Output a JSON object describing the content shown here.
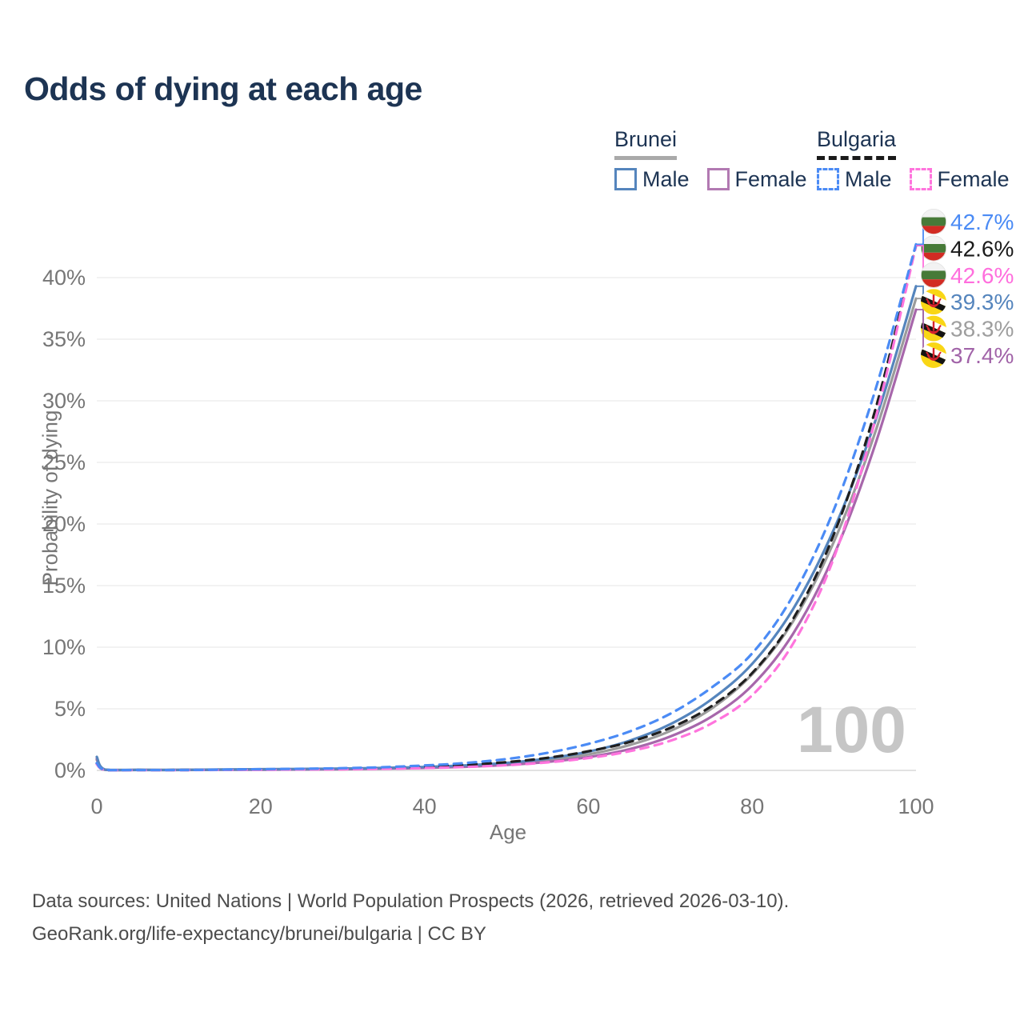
{
  "title": "Odds of dying at each age",
  "legend": {
    "groups": [
      {
        "country": "Brunei",
        "line_style": "solid",
        "underline_color": "#a9a9a9",
        "items": [
          {
            "label": "Male",
            "color": "#5585bd",
            "dashed": false
          },
          {
            "label": "Female",
            "color": "#b279b2",
            "dashed": false
          }
        ]
      },
      {
        "country": "Bulgaria",
        "line_style": "dashed",
        "underline_color": "#1a1a1a",
        "items": [
          {
            "label": "Male",
            "color": "#4b8bf5",
            "dashed": true
          },
          {
            "label": "Female",
            "color": "#ff74dd",
            "dashed": true
          }
        ]
      }
    ]
  },
  "watermark": "100",
  "footer": {
    "line1": "Data sources: United Nations | World Population Prospects (2026, retrieved 2026-03-10).",
    "line2": "GeoRank.org/life-expectancy/brunei/bulgaria | CC BY"
  },
  "chart_data": {
    "type": "line",
    "title": "Odds of dying at each age",
    "xlabel": "Age",
    "ylabel": "Probability of dying",
    "xlim": [
      0,
      100
    ],
    "ylim_pct": [
      0,
      45
    ],
    "x_ticks": [
      0,
      20,
      40,
      60,
      80,
      100
    ],
    "y_ticks": [
      {
        "value": 0,
        "label": "0%"
      },
      {
        "value": 5,
        "label": "5%"
      },
      {
        "value": 10,
        "label": "10%"
      },
      {
        "value": 15,
        "label": "15%"
      },
      {
        "value": 20,
        "label": "20%"
      },
      {
        "value": 25,
        "label": "25%"
      },
      {
        "value": 30,
        "label": "30%"
      },
      {
        "value": 35,
        "label": "35%"
      },
      {
        "value": 40,
        "label": "40%"
      }
    ],
    "grid": "horizontal",
    "legend_position": "top-right",
    "series": [
      {
        "id": "brunei",
        "name": "Brunei (both sexes)",
        "color": "#9b9b9b",
        "dashed": false,
        "end_label": {
          "value": "38.3%",
          "color": "#9e9e9e",
          "flag": "brunei",
          "order": 5
        },
        "points": [
          [
            0,
            0.85
          ],
          [
            1,
            0.06
          ],
          [
            5,
            0.04
          ],
          [
            10,
            0.04
          ],
          [
            15,
            0.06
          ],
          [
            20,
            0.08
          ],
          [
            25,
            0.1
          ],
          [
            30,
            0.13
          ],
          [
            35,
            0.17
          ],
          [
            40,
            0.24
          ],
          [
            45,
            0.35
          ],
          [
            50,
            0.52
          ],
          [
            55,
            0.82
          ],
          [
            60,
            1.3
          ],
          [
            65,
            2.05
          ],
          [
            70,
            3.2
          ],
          [
            75,
            5.0
          ],
          [
            80,
            7.8
          ],
          [
            85,
            12.1
          ],
          [
            90,
            18.6
          ],
          [
            95,
            27.4
          ],
          [
            100,
            38.3
          ]
        ]
      },
      {
        "id": "brunei-female",
        "name": "Brunei Female",
        "color": "#a767ab",
        "dashed": false,
        "end_label": {
          "value": "37.4%",
          "color": "#a163a8",
          "flag": "brunei",
          "order": 6
        },
        "points": [
          [
            0,
            0.95
          ],
          [
            1,
            0.05
          ],
          [
            5,
            0.03
          ],
          [
            10,
            0.03
          ],
          [
            15,
            0.05
          ],
          [
            20,
            0.06
          ],
          [
            25,
            0.08
          ],
          [
            30,
            0.1
          ],
          [
            35,
            0.14
          ],
          [
            40,
            0.2
          ],
          [
            45,
            0.29
          ],
          [
            50,
            0.44
          ],
          [
            55,
            0.69
          ],
          [
            60,
            1.08
          ],
          [
            65,
            1.72
          ],
          [
            70,
            2.75
          ],
          [
            75,
            4.35
          ],
          [
            80,
            6.9
          ],
          [
            85,
            11.1
          ],
          [
            90,
            17.5
          ],
          [
            95,
            26.4
          ],
          [
            100,
            37.4
          ]
        ]
      },
      {
        "id": "brunei-male",
        "name": "Brunei Male",
        "color": "#5585bd",
        "dashed": false,
        "end_label": {
          "value": "39.3%",
          "color": "#5585bd",
          "flag": "brunei",
          "order": 4
        },
        "points": [
          [
            0,
            1.1
          ],
          [
            1,
            0.07
          ],
          [
            5,
            0.04
          ],
          [
            10,
            0.04
          ],
          [
            15,
            0.07
          ],
          [
            20,
            0.1
          ],
          [
            25,
            0.12
          ],
          [
            30,
            0.15
          ],
          [
            35,
            0.2
          ],
          [
            40,
            0.28
          ],
          [
            45,
            0.41
          ],
          [
            50,
            0.61
          ],
          [
            55,
            0.96
          ],
          [
            60,
            1.52
          ],
          [
            65,
            2.4
          ],
          [
            70,
            3.75
          ],
          [
            75,
            5.75
          ],
          [
            80,
            8.65
          ],
          [
            85,
            13.1
          ],
          [
            90,
            19.6
          ],
          [
            95,
            28.3
          ],
          [
            100,
            39.3
          ]
        ]
      },
      {
        "id": "bulgaria",
        "name": "Bulgaria (both sexes)",
        "color": "#1f1f1f",
        "dashed": true,
        "end_label": {
          "value": "42.6%",
          "color": "#1a1a1a",
          "flag": "bulgaria",
          "order": 2
        },
        "points": [
          [
            0,
            0.55
          ],
          [
            1,
            0.04
          ],
          [
            5,
            0.03
          ],
          [
            10,
            0.03
          ],
          [
            15,
            0.05
          ],
          [
            20,
            0.08
          ],
          [
            25,
            0.1
          ],
          [
            30,
            0.14
          ],
          [
            35,
            0.2
          ],
          [
            40,
            0.3
          ],
          [
            45,
            0.45
          ],
          [
            50,
            0.67
          ],
          [
            55,
            1.02
          ],
          [
            60,
            1.55
          ],
          [
            65,
            2.3
          ],
          [
            70,
            3.45
          ],
          [
            75,
            5.2
          ],
          [
            80,
            7.9
          ],
          [
            85,
            12.3
          ],
          [
            90,
            19.2
          ],
          [
            95,
            29.2
          ],
          [
            100,
            42.6
          ]
        ]
      },
      {
        "id": "bulgaria-female",
        "name": "Bulgaria Female",
        "color": "#ff74dd",
        "dashed": true,
        "end_label": {
          "value": "42.6%",
          "color": "#ff6edd",
          "flag": "bulgaria",
          "order": 3
        },
        "points": [
          [
            0,
            0.5
          ],
          [
            1,
            0.04
          ],
          [
            5,
            0.02
          ],
          [
            10,
            0.02
          ],
          [
            15,
            0.04
          ],
          [
            20,
            0.05
          ],
          [
            25,
            0.07
          ],
          [
            30,
            0.09
          ],
          [
            35,
            0.13
          ],
          [
            40,
            0.19
          ],
          [
            45,
            0.28
          ],
          [
            50,
            0.42
          ],
          [
            55,
            0.65
          ],
          [
            60,
            1.0
          ],
          [
            65,
            1.55
          ],
          [
            70,
            2.4
          ],
          [
            75,
            3.8
          ],
          [
            80,
            6.1
          ],
          [
            85,
            10.3
          ],
          [
            90,
            17.3
          ],
          [
            95,
            28.4
          ],
          [
            100,
            42.6
          ]
        ]
      },
      {
        "id": "bulgaria-male",
        "name": "Bulgaria Male",
        "color": "#4b8bf5",
        "dashed": true,
        "end_label": {
          "value": "42.7%",
          "color": "#4b8bf5",
          "flag": "bulgaria",
          "order": 1
        },
        "points": [
          [
            0,
            0.6
          ],
          [
            1,
            0.05
          ],
          [
            5,
            0.03
          ],
          [
            10,
            0.03
          ],
          [
            15,
            0.06
          ],
          [
            20,
            0.1
          ],
          [
            25,
            0.13
          ],
          [
            30,
            0.18
          ],
          [
            35,
            0.26
          ],
          [
            40,
            0.4
          ],
          [
            45,
            0.6
          ],
          [
            50,
            0.92
          ],
          [
            55,
            1.42
          ],
          [
            60,
            2.15
          ],
          [
            65,
            3.15
          ],
          [
            70,
            4.6
          ],
          [
            75,
            6.7
          ],
          [
            80,
            9.5
          ],
          [
            85,
            14.2
          ],
          [
            90,
            21.2
          ],
          [
            95,
            30.8
          ],
          [
            100,
            42.7
          ]
        ]
      }
    ]
  }
}
